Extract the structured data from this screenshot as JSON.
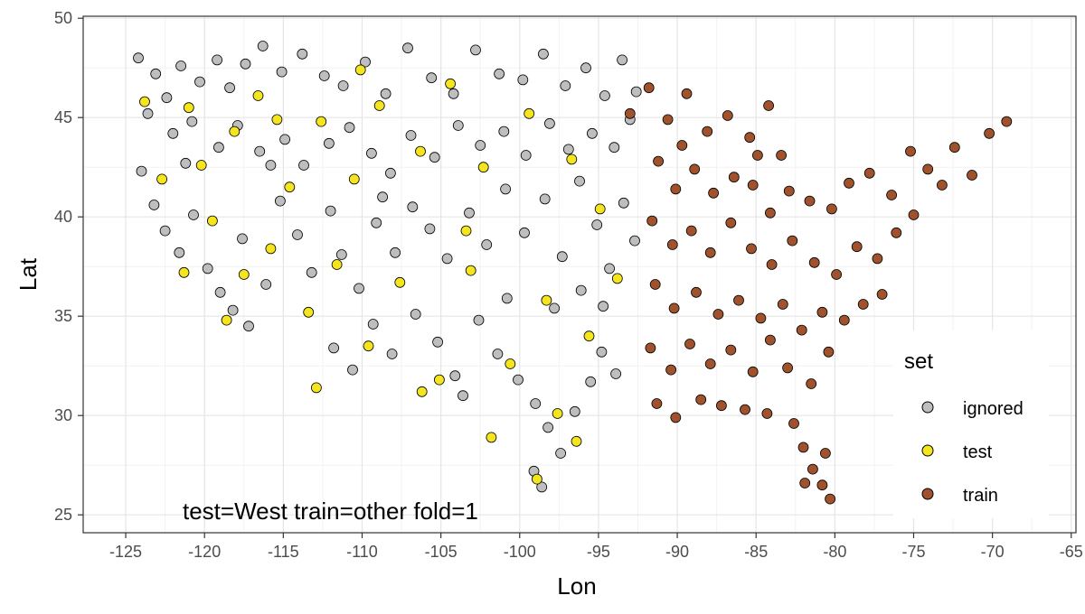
{
  "chart_data": {
    "type": "scatter",
    "xlabel": "Lon",
    "ylabel": "Lat",
    "xlim": [
      -127.7,
      -64.7
    ],
    "ylim": [
      24.1,
      50.1
    ],
    "x_ticks": [
      {
        "value": -125,
        "label": "-125"
      },
      {
        "value": -120,
        "label": "-120"
      },
      {
        "value": -115,
        "label": "-115"
      },
      {
        "value": -110,
        "label": "-110"
      },
      {
        "value": -105,
        "label": "-105"
      },
      {
        "value": -100,
        "label": "-100"
      },
      {
        "value": -95,
        "label": "-95"
      },
      {
        "value": -90,
        "label": "-90"
      },
      {
        "value": -85,
        "label": "-85"
      },
      {
        "value": -80,
        "label": "-80"
      },
      {
        "value": -75,
        "label": "-75"
      },
      {
        "value": -70,
        "label": "-70"
      },
      {
        "value": -65,
        "label": "-65"
      }
    ],
    "y_ticks": [
      {
        "value": 25,
        "label": "25"
      },
      {
        "value": 30,
        "label": "30"
      },
      {
        "value": 35,
        "label": "35"
      },
      {
        "value": 40,
        "label": "40"
      },
      {
        "value": 45,
        "label": "45"
      },
      {
        "value": 50,
        "label": "50"
      }
    ],
    "grid": true,
    "annotation": "test=West train=other fold=1",
    "legend": {
      "title": "set",
      "position": "right-bottom",
      "entries": [
        {
          "label": "ignored",
          "color": "#bebebe"
        },
        {
          "label": "test",
          "color": "#f5e51f"
        },
        {
          "label": "train",
          "color": "#a0522d"
        }
      ]
    },
    "series": [
      {
        "name": "ignored",
        "color": "#bebebe",
        "points": [
          [
            -124.2,
            48.0
          ],
          [
            -123.1,
            47.2
          ],
          [
            -122.4,
            46.0
          ],
          [
            -121.5,
            47.6
          ],
          [
            -120.3,
            46.8
          ],
          [
            -119.2,
            47.9
          ],
          [
            -118.4,
            46.5
          ],
          [
            -117.4,
            47.7
          ],
          [
            -116.3,
            48.6
          ],
          [
            -115.1,
            47.3
          ],
          [
            -113.8,
            48.2
          ],
          [
            -112.4,
            47.1
          ],
          [
            -111.2,
            46.6
          ],
          [
            -109.8,
            47.8
          ],
          [
            -108.5,
            46.2
          ],
          [
            -107.1,
            48.5
          ],
          [
            -105.6,
            47.0
          ],
          [
            -104.2,
            46.2
          ],
          [
            -102.8,
            48.4
          ],
          [
            -101.3,
            47.2
          ],
          [
            -99.8,
            46.9
          ],
          [
            -98.5,
            48.2
          ],
          [
            -97.1,
            46.6
          ],
          [
            -95.8,
            47.5
          ],
          [
            -94.6,
            46.1
          ],
          [
            -93.5,
            47.9
          ],
          [
            -92.6,
            46.3
          ],
          [
            -123.6,
            45.2
          ],
          [
            -122.0,
            44.2
          ],
          [
            -120.8,
            44.8
          ],
          [
            -119.1,
            43.5
          ],
          [
            -117.9,
            44.6
          ],
          [
            -116.5,
            43.3
          ],
          [
            -114.9,
            43.9
          ],
          [
            -113.7,
            42.6
          ],
          [
            -112.1,
            43.7
          ],
          [
            -110.8,
            44.5
          ],
          [
            -109.4,
            43.2
          ],
          [
            -108.2,
            42.2
          ],
          [
            -106.9,
            44.1
          ],
          [
            -105.4,
            43.0
          ],
          [
            -103.9,
            44.6
          ],
          [
            -102.5,
            43.6
          ],
          [
            -101.0,
            44.3
          ],
          [
            -99.6,
            43.1
          ],
          [
            -98.1,
            44.7
          ],
          [
            -96.9,
            43.4
          ],
          [
            -95.4,
            44.2
          ],
          [
            -94.0,
            43.5
          ],
          [
            -93.0,
            44.9
          ],
          [
            -124.0,
            42.3
          ],
          [
            -123.2,
            40.6
          ],
          [
            -122.5,
            39.3
          ],
          [
            -121.6,
            38.2
          ],
          [
            -120.7,
            40.1
          ],
          [
            -119.8,
            37.4
          ],
          [
            -119.0,
            36.2
          ],
          [
            -118.2,
            35.3
          ],
          [
            -117.2,
            34.5
          ],
          [
            -117.6,
            38.9
          ],
          [
            -116.1,
            36.6
          ],
          [
            -115.2,
            40.8
          ],
          [
            -114.1,
            39.1
          ],
          [
            -113.2,
            37.2
          ],
          [
            -112.0,
            40.3
          ],
          [
            -111.3,
            38.1
          ],
          [
            -110.2,
            36.4
          ],
          [
            -109.1,
            39.7
          ],
          [
            -107.9,
            38.2
          ],
          [
            -106.8,
            40.5
          ],
          [
            -105.7,
            39.4
          ],
          [
            -104.6,
            37.9
          ],
          [
            -103.2,
            40.2
          ],
          [
            -102.1,
            38.6
          ],
          [
            -100.9,
            41.4
          ],
          [
            -99.7,
            39.2
          ],
          [
            -98.4,
            40.9
          ],
          [
            -97.3,
            38.0
          ],
          [
            -96.2,
            41.8
          ],
          [
            -95.1,
            39.6
          ],
          [
            -94.3,
            37.4
          ],
          [
            -93.4,
            40.7
          ],
          [
            -92.7,
            38.8
          ],
          [
            -111.8,
            33.4
          ],
          [
            -110.6,
            32.3
          ],
          [
            -109.3,
            34.6
          ],
          [
            -108.1,
            33.1
          ],
          [
            -106.6,
            35.1
          ],
          [
            -105.2,
            33.7
          ],
          [
            -104.1,
            32.0
          ],
          [
            -102.6,
            34.8
          ],
          [
            -101.4,
            33.1
          ],
          [
            -100.1,
            31.8
          ],
          [
            -99.0,
            30.6
          ],
          [
            -98.2,
            29.4
          ],
          [
            -97.4,
            28.1
          ],
          [
            -96.5,
            30.2
          ],
          [
            -95.5,
            31.7
          ],
          [
            -94.8,
            33.2
          ],
          [
            -93.9,
            32.1
          ],
          [
            -99.1,
            27.2
          ],
          [
            -98.6,
            26.4
          ],
          [
            -103.6,
            31.0
          ],
          [
            -100.8,
            35.9
          ],
          [
            -97.8,
            35.4
          ],
          [
            -96.1,
            36.3
          ],
          [
            -94.7,
            35.5
          ],
          [
            -115.8,
            42.6
          ],
          [
            -121.2,
            42.7
          ],
          [
            -108.7,
            41.0
          ]
        ]
      },
      {
        "name": "test",
        "color": "#f5e51f",
        "points": [
          [
            -123.8,
            45.8
          ],
          [
            -122.7,
            41.9
          ],
          [
            -121.0,
            45.5
          ],
          [
            -120.2,
            42.6
          ],
          [
            -119.5,
            39.8
          ],
          [
            -118.1,
            44.3
          ],
          [
            -117.5,
            37.1
          ],
          [
            -116.6,
            46.1
          ],
          [
            -115.8,
            38.4
          ],
          [
            -114.6,
            41.5
          ],
          [
            -113.4,
            35.2
          ],
          [
            -112.6,
            44.8
          ],
          [
            -111.6,
            37.6
          ],
          [
            -110.5,
            41.9
          ],
          [
            -109.6,
            33.5
          ],
          [
            -108.9,
            45.6
          ],
          [
            -107.6,
            36.7
          ],
          [
            -106.3,
            43.3
          ],
          [
            -105.1,
            31.8
          ],
          [
            -104.4,
            46.7
          ],
          [
            -103.1,
            37.3
          ],
          [
            -102.3,
            42.5
          ],
          [
            -100.6,
            32.6
          ],
          [
            -99.4,
            45.2
          ],
          [
            -98.3,
            35.8
          ],
          [
            -97.6,
            30.1
          ],
          [
            -96.7,
            42.9
          ],
          [
            -95.6,
            34.0
          ],
          [
            -94.9,
            40.4
          ],
          [
            -93.8,
            36.9
          ],
          [
            -98.9,
            26.8
          ],
          [
            -101.8,
            28.9
          ],
          [
            -103.4,
            39.3
          ],
          [
            -118.6,
            34.8
          ],
          [
            -121.3,
            37.2
          ],
          [
            -112.9,
            31.4
          ],
          [
            -115.4,
            44.9
          ],
          [
            -106.2,
            31.2
          ],
          [
            -96.4,
            28.7
          ],
          [
            -110.1,
            47.4
          ]
        ]
      },
      {
        "name": "train",
        "color": "#a0522d",
        "points": [
          [
            -91.8,
            46.5
          ],
          [
            -90.6,
            44.9
          ],
          [
            -89.4,
            46.2
          ],
          [
            -88.1,
            44.3
          ],
          [
            -86.8,
            45.1
          ],
          [
            -85.4,
            44.0
          ],
          [
            -84.2,
            45.6
          ],
          [
            -83.4,
            43.1
          ],
          [
            -91.2,
            42.8
          ],
          [
            -90.1,
            41.4
          ],
          [
            -88.9,
            42.4
          ],
          [
            -87.7,
            41.2
          ],
          [
            -86.4,
            42.0
          ],
          [
            -85.2,
            41.6
          ],
          [
            -84.1,
            40.2
          ],
          [
            -82.9,
            41.3
          ],
          [
            -81.6,
            40.8
          ],
          [
            -80.2,
            40.4
          ],
          [
            -79.1,
            41.7
          ],
          [
            -77.8,
            42.2
          ],
          [
            -76.4,
            41.1
          ],
          [
            -75.2,
            43.3
          ],
          [
            -74.1,
            42.4
          ],
          [
            -73.2,
            41.6
          ],
          [
            -72.4,
            43.5
          ],
          [
            -71.3,
            42.1
          ],
          [
            -70.2,
            44.2
          ],
          [
            -69.1,
            44.8
          ],
          [
            -91.6,
            39.8
          ],
          [
            -90.3,
            38.6
          ],
          [
            -89.1,
            39.3
          ],
          [
            -87.9,
            38.2
          ],
          [
            -86.6,
            39.7
          ],
          [
            -85.3,
            38.4
          ],
          [
            -84.0,
            37.6
          ],
          [
            -82.7,
            38.8
          ],
          [
            -81.3,
            37.7
          ],
          [
            -79.9,
            37.1
          ],
          [
            -78.6,
            38.5
          ],
          [
            -77.3,
            37.9
          ],
          [
            -76.1,
            39.2
          ],
          [
            -75.0,
            40.1
          ],
          [
            -91.4,
            36.6
          ],
          [
            -90.2,
            35.4
          ],
          [
            -88.8,
            36.2
          ],
          [
            -87.4,
            35.1
          ],
          [
            -86.1,
            35.8
          ],
          [
            -84.7,
            34.9
          ],
          [
            -83.3,
            35.6
          ],
          [
            -82.1,
            34.3
          ],
          [
            -80.8,
            35.2
          ],
          [
            -79.4,
            34.8
          ],
          [
            -78.2,
            35.6
          ],
          [
            -77.0,
            36.1
          ],
          [
            -91.7,
            33.4
          ],
          [
            -90.4,
            32.3
          ],
          [
            -89.2,
            33.6
          ],
          [
            -87.9,
            32.6
          ],
          [
            -86.6,
            33.3
          ],
          [
            -85.2,
            32.2
          ],
          [
            -84.1,
            33.8
          ],
          [
            -83.0,
            32.4
          ],
          [
            -81.5,
            31.6
          ],
          [
            -80.4,
            33.2
          ],
          [
            -91.3,
            30.6
          ],
          [
            -90.1,
            29.9
          ],
          [
            -88.5,
            30.8
          ],
          [
            -87.2,
            30.5
          ],
          [
            -85.7,
            30.3
          ],
          [
            -84.3,
            30.1
          ],
          [
            -82.6,
            29.6
          ],
          [
            -82.0,
            28.4
          ],
          [
            -81.4,
            27.3
          ],
          [
            -80.8,
            26.5
          ],
          [
            -80.3,
            25.8
          ],
          [
            -81.9,
            26.6
          ],
          [
            -80.6,
            28.1
          ],
          [
            -93.0,
            45.2
          ],
          [
            -84.9,
            43.1
          ],
          [
            -89.7,
            43.6
          ]
        ]
      }
    ]
  }
}
